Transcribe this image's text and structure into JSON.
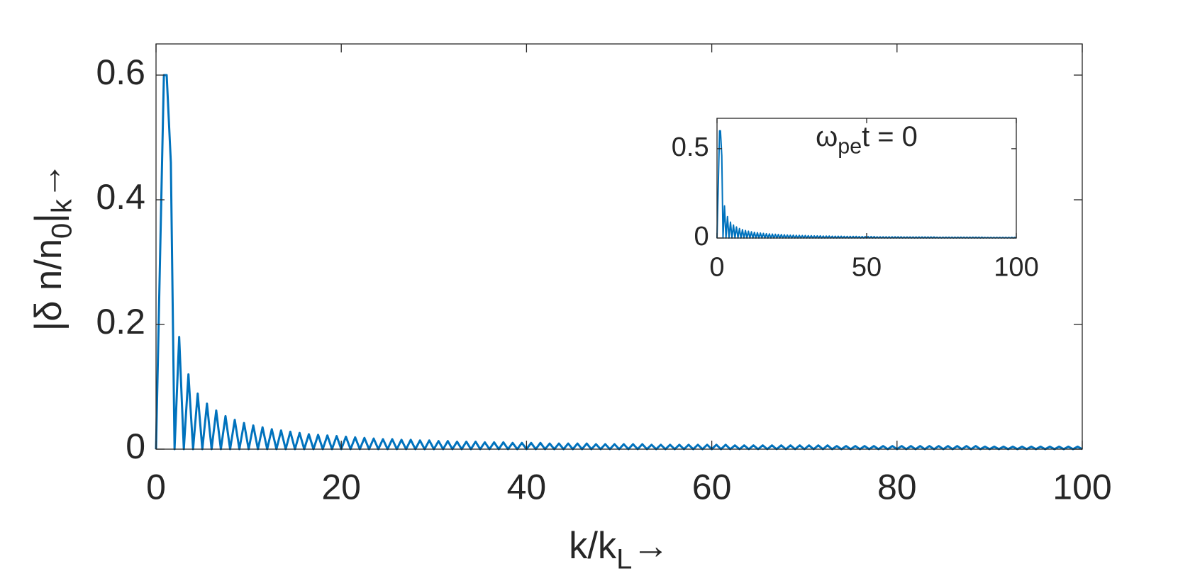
{
  "chart_data": [
    {
      "type": "line",
      "xlabel": [
        "k/k",
        "L",
        "→"
      ],
      "ylabel": [
        "|δ n/n",
        "0",
        "|",
        "k",
        "→"
      ],
      "xlim": [
        0,
        100
      ],
      "xticks": [
        0,
        20,
        40,
        60,
        80,
        100
      ],
      "ylim": [
        0,
        0.65
      ],
      "yticks": [
        0,
        0.2,
        0.4,
        0.6
      ],
      "box": true,
      "series": [
        {
          "color": "#0072BD",
          "x": [
            0,
            0.85,
            1.15,
            1.6,
            2,
            2.5,
            3,
            3.5,
            4,
            4.5,
            5,
            5.5,
            6,
            6.5,
            7,
            7.5,
            8,
            8.5,
            9,
            9.5,
            10,
            10.5,
            11,
            11.5,
            12,
            12.5,
            13,
            13.5,
            14,
            14.5,
            15,
            15.5,
            16,
            16.5,
            17,
            17.5,
            18,
            18.5,
            19,
            19.5,
            20,
            20.5,
            21,
            21.5,
            22,
            22.5,
            23,
            23.5,
            24,
            24.5,
            25,
            25.5,
            26,
            26.5,
            27,
            27.5,
            28,
            28.5,
            29,
            29.5,
            30,
            30.5,
            31,
            31.5,
            32,
            32.5,
            33,
            33.5,
            34,
            34.5,
            35,
            35.5,
            36,
            36.5,
            37,
            37.5,
            38,
            38.5,
            39,
            39.5,
            40,
            40.5,
            41,
            41.5,
            42,
            42.5,
            43,
            43.5,
            44,
            44.5,
            45,
            45.5,
            46,
            46.5,
            47,
            47.5,
            48,
            48.5,
            49,
            49.5,
            50,
            50.5,
            51,
            51.5,
            52,
            52.5,
            53,
            53.5,
            54,
            54.5,
            55,
            55.5,
            56,
            56.5,
            57,
            57.5,
            58,
            58.5,
            59,
            59.5,
            60,
            60.5,
            61,
            61.5,
            62,
            62.5,
            63,
            63.5,
            64,
            64.5,
            65,
            65.5,
            66,
            66.5,
            67,
            67.5,
            68,
            68.5,
            69,
            69.5,
            70,
            70.5,
            71,
            71.5,
            72,
            72.5,
            73,
            73.5,
            74,
            74.5,
            75,
            75.5,
            76,
            76.5,
            77,
            77.5,
            78,
            78.5,
            79,
            79.5,
            80,
            80.5,
            81,
            81.5,
            82,
            82.5,
            83,
            83.5,
            84,
            84.5,
            85,
            85.5,
            86,
            86.5,
            87,
            87.5,
            88,
            88.5,
            89,
            89.5,
            90,
            90.5,
            91,
            91.5,
            92,
            92.5,
            93,
            93.5,
            94,
            94.5,
            95,
            95.5,
            96,
            96.5,
            97,
            97.5,
            98,
            98.5,
            99,
            99.5,
            100
          ],
          "values": [
            0,
            0.6,
            0.6,
            0.46,
            0,
            0.18,
            0,
            0.12,
            0,
            0.089,
            0,
            0.073,
            0,
            0.062,
            0,
            0.053,
            0,
            0.047,
            0,
            0.042,
            0,
            0.038,
            0,
            0.035,
            0,
            0.032,
            0,
            0.03,
            0,
            0.028,
            0,
            0.026,
            0,
            0.024,
            0,
            0.023,
            0,
            0.022,
            0,
            0.021,
            0,
            0.02,
            0,
            0.019,
            0,
            0.018,
            0,
            0.017,
            0,
            0.016,
            0,
            0.016,
            0,
            0.015,
            0,
            0.015,
            0,
            0.014,
            0,
            0.014,
            0,
            0.013,
            0,
            0.013,
            0,
            0.012,
            0,
            0.012,
            0,
            0.012,
            0,
            0.011,
            0,
            0.011,
            0,
            0.011,
            0,
            0.01,
            0,
            0.01,
            0,
            0.01,
            0,
            0.01,
            0,
            0.009,
            0,
            0.009,
            0,
            0.009,
            0,
            0.009,
            0,
            0.009,
            0,
            0.008,
            0,
            0.008,
            0,
            0.008,
            0,
            0.008,
            0,
            0.008,
            0,
            0.008,
            0,
            0.007,
            0,
            0.007,
            0,
            0.007,
            0,
            0.007,
            0,
            0.007,
            0,
            0.007,
            0,
            0.007,
            0,
            0.007,
            0,
            0.007,
            0,
            0.006,
            0,
            0.006,
            0,
            0.006,
            0,
            0.006,
            0,
            0.006,
            0,
            0.006,
            0,
            0.006,
            0,
            0.006,
            0,
            0.006,
            0,
            0.006,
            0,
            0.006,
            0,
            0.005,
            0,
            0.005,
            0,
            0.005,
            0,
            0.005,
            0,
            0.005,
            0,
            0.005,
            0,
            0.005,
            0,
            0.005,
            0,
            0.005,
            0,
            0.005,
            0,
            0.005,
            0,
            0.005,
            0,
            0.005,
            0,
            0.005,
            0,
            0.005,
            0,
            0.005,
            0,
            0.004,
            0,
            0.004,
            0,
            0.004,
            0,
            0.004,
            0,
            0.004,
            0,
            0.004,
            0,
            0.004,
            0,
            0.004,
            0,
            0.004,
            0,
            0.004,
            0,
            0.004,
            0
          ]
        }
      ]
    },
    {
      "type": "line",
      "annotation": [
        "ω",
        "pe",
        "t = 0"
      ],
      "xlim": [
        0,
        100
      ],
      "xticks": [
        0,
        50,
        100
      ],
      "ylim": [
        0,
        0.67
      ],
      "yticks": [
        0,
        0.5
      ],
      "box": true,
      "series": [
        {
          "color": "#0072BD",
          "x": [
            0,
            0.85,
            1.15,
            1.6,
            2,
            2.5,
            3,
            3.5,
            4,
            4.5,
            5,
            5.5,
            6,
            6.5,
            7,
            7.5,
            8,
            8.5,
            9,
            9.5,
            10,
            10.5,
            11,
            11.5,
            12,
            12.5,
            13,
            13.5,
            14,
            14.5,
            15,
            15.5,
            16,
            16.5,
            17,
            17.5,
            18,
            18.5,
            19,
            19.5,
            20,
            20.5,
            21,
            21.5,
            22,
            22.5,
            23,
            23.5,
            24,
            24.5,
            25,
            25.5,
            26,
            26.5,
            27,
            27.5,
            28,
            28.5,
            29,
            29.5,
            30,
            30.5,
            31,
            31.5,
            32,
            32.5,
            33,
            33.5,
            34,
            34.5,
            35,
            35.5,
            36,
            36.5,
            37,
            37.5,
            38,
            38.5,
            39,
            39.5,
            40,
            40.5,
            41,
            41.5,
            42,
            42.5,
            43,
            43.5,
            44,
            44.5,
            45,
            45.5,
            46,
            46.5,
            47,
            47.5,
            48,
            48.5,
            49,
            49.5,
            50,
            50.5,
            51,
            51.5,
            52,
            52.5,
            53,
            53.5,
            54,
            54.5,
            55,
            55.5,
            56,
            56.5,
            57,
            57.5,
            58,
            58.5,
            59,
            59.5,
            60,
            60.5,
            61,
            61.5,
            62,
            62.5,
            63,
            63.5,
            64,
            64.5,
            65,
            65.5,
            66,
            66.5,
            67,
            67.5,
            68,
            68.5,
            69,
            69.5,
            70,
            70.5,
            71,
            71.5,
            72,
            72.5,
            73,
            73.5,
            74,
            74.5,
            75,
            75.5,
            76,
            76.5,
            77,
            77.5,
            78,
            78.5,
            79,
            79.5,
            80,
            80.5,
            81,
            81.5,
            82,
            82.5,
            83,
            83.5,
            84,
            84.5,
            85,
            85.5,
            86,
            86.5,
            87,
            87.5,
            88,
            88.5,
            89,
            89.5,
            90,
            90.5,
            91,
            91.5,
            92,
            92.5,
            93,
            93.5,
            94,
            94.5,
            95,
            95.5,
            96,
            96.5,
            97,
            97.5,
            98,
            98.5,
            99,
            99.5,
            100
          ],
          "values": [
            0,
            0.6,
            0.6,
            0.46,
            0,
            0.18,
            0,
            0.12,
            0,
            0.089,
            0,
            0.073,
            0,
            0.062,
            0,
            0.053,
            0,
            0.047,
            0,
            0.042,
            0,
            0.038,
            0,
            0.035,
            0,
            0.032,
            0,
            0.03,
            0,
            0.028,
            0,
            0.026,
            0,
            0.024,
            0,
            0.023,
            0,
            0.022,
            0,
            0.021,
            0,
            0.02,
            0,
            0.019,
            0,
            0.018,
            0,
            0.017,
            0,
            0.016,
            0,
            0.016,
            0,
            0.015,
            0,
            0.015,
            0,
            0.014,
            0,
            0.014,
            0,
            0.013,
            0,
            0.013,
            0,
            0.012,
            0,
            0.012,
            0,
            0.012,
            0,
            0.011,
            0,
            0.011,
            0,
            0.011,
            0,
            0.01,
            0,
            0.01,
            0,
            0.01,
            0,
            0.01,
            0,
            0.009,
            0,
            0.009,
            0,
            0.009,
            0,
            0.009,
            0,
            0.009,
            0,
            0.008,
            0,
            0.008,
            0,
            0.008,
            0,
            0.008,
            0,
            0.008,
            0,
            0.008,
            0,
            0.007,
            0,
            0.007,
            0,
            0.007,
            0,
            0.007,
            0,
            0.007,
            0,
            0.007,
            0,
            0.007,
            0,
            0.007,
            0,
            0.007,
            0,
            0.006,
            0,
            0.006,
            0,
            0.006,
            0,
            0.006,
            0,
            0.006,
            0,
            0.006,
            0,
            0.006,
            0,
            0.006,
            0,
            0.006,
            0,
            0.006,
            0,
            0.006,
            0,
            0.005,
            0,
            0.005,
            0,
            0.005,
            0,
            0.005,
            0,
            0.005,
            0,
            0.005,
            0,
            0.005,
            0,
            0.005,
            0,
            0.005,
            0,
            0.005,
            0,
            0.005,
            0,
            0.005,
            0,
            0.005,
            0,
            0.005,
            0,
            0.005,
            0,
            0.005,
            0,
            0.004,
            0,
            0.004,
            0,
            0.004,
            0,
            0.004,
            0,
            0.004,
            0,
            0.004,
            0,
            0.004,
            0,
            0.004,
            0,
            0.004,
            0,
            0.004,
            0,
            0.004,
            0
          ]
        }
      ]
    }
  ]
}
